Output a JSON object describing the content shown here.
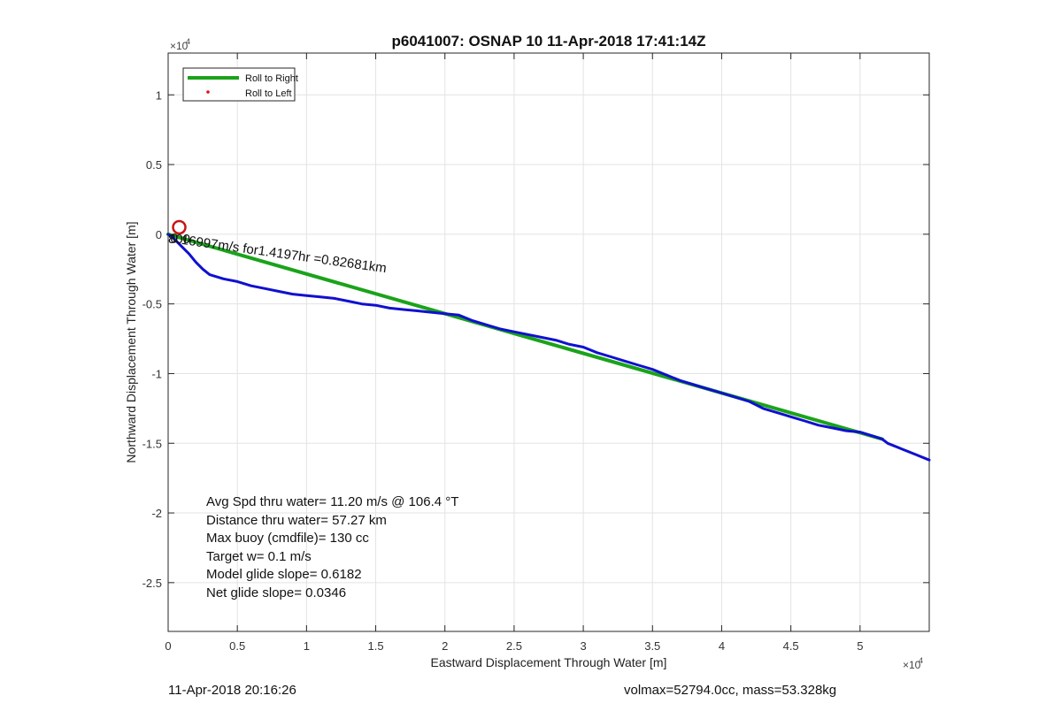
{
  "chart_data": {
    "type": "line",
    "title": "p6041007: OSNAP 10 11-Apr-2018 17:41:14Z",
    "xlabel": "Eastward Displacement Through Water [m]",
    "ylabel": "Northward Displacement Through Water [m]",
    "x_multiplier": "×10^4",
    "y_multiplier": "×10^4",
    "xlim": [
      0,
      55000
    ],
    "ylim": [
      -28500,
      13000
    ],
    "x_ticks": [
      0,
      5000,
      10000,
      15000,
      20000,
      25000,
      30000,
      35000,
      40000,
      45000,
      50000
    ],
    "x_tick_labels": [
      "0",
      "0.5",
      "1",
      "1.5",
      "2",
      "2.5",
      "3",
      "3.5",
      "4",
      "4.5",
      "5"
    ],
    "y_ticks": [
      -25000,
      -20000,
      -15000,
      -10000,
      -5000,
      0,
      5000,
      10000
    ],
    "y_tick_labels": [
      "-2.5",
      "-2",
      "-1.5",
      "-1",
      "-0.5",
      "0",
      "0.5",
      "1"
    ],
    "grid": true,
    "legend_position": "top-left",
    "series": [
      {
        "name": "Roll to Right",
        "color": "#1aa31a",
        "style": "line",
        "x": [
          0,
          51600
        ],
        "y": [
          0,
          -14700
        ]
      },
      {
        "name": "Roll to Left",
        "color": "#e01010",
        "style": "marker",
        "x": [],
        "y": []
      },
      {
        "name": "",
        "color": "#1010d0",
        "style": "line",
        "x": [
          0,
          300,
          500,
          1000,
          1500,
          2000,
          2500,
          3000,
          4000,
          5000,
          6000,
          7000,
          8000,
          9000,
          10000,
          11000,
          12000,
          13000,
          14000,
          15000,
          16000,
          17000,
          18000,
          19000,
          20000,
          21000,
          22000,
          23000,
          24000,
          25000,
          26000,
          27000,
          28000,
          29000,
          30000,
          31000,
          32000,
          33000,
          34000,
          35000,
          36000,
          37000,
          38000,
          39000,
          40000,
          41000,
          42000,
          43000,
          44000,
          45000,
          46000,
          47000,
          48000,
          49000,
          50000,
          51000,
          51600,
          52000,
          53000,
          54000,
          55000
        ],
        "y": [
          0,
          -200,
          -400,
          -900,
          -1400,
          -2000,
          -2500,
          -2900,
          -3200,
          -3400,
          -3700,
          -3900,
          -4100,
          -4300,
          -4400,
          -4500,
          -4600,
          -4800,
          -5000,
          -5100,
          -5300,
          -5400,
          -5500,
          -5600,
          -5700,
          -5800,
          -6200,
          -6500,
          -6800,
          -7000,
          -7200,
          -7400,
          -7600,
          -7900,
          -8100,
          -8500,
          -8800,
          -9100,
          -9400,
          -9700,
          -10100,
          -10500,
          -10800,
          -11100,
          -11400,
          -11700,
          -12000,
          -12500,
          -12800,
          -13100,
          -13400,
          -13700,
          -13900,
          -14100,
          -14200,
          -14500,
          -14700,
          -15000,
          -15400,
          -15800,
          -16200
        ]
      }
    ],
    "start_marker": {
      "x": 800,
      "y": 500,
      "color": "#c81414"
    },
    "track_annotation": "0.16997m/s for1.4197hr =0.82681km",
    "annotation_overlap": "800",
    "stats_lines": [
      "Avg Spd thru water= 11.20 m/s @ 106.4 °T",
      "Distance thru water= 57.27 km",
      "Max buoy (cmdfile)= 130 cc",
      "Target w= 0.1 m/s",
      "Model glide slope= 0.6182",
      "Net glide slope= 0.0346"
    ]
  },
  "footer": {
    "left": "11-Apr-2018 20:16:26",
    "right": "volmax=52794.0cc, mass=53.328kg"
  }
}
